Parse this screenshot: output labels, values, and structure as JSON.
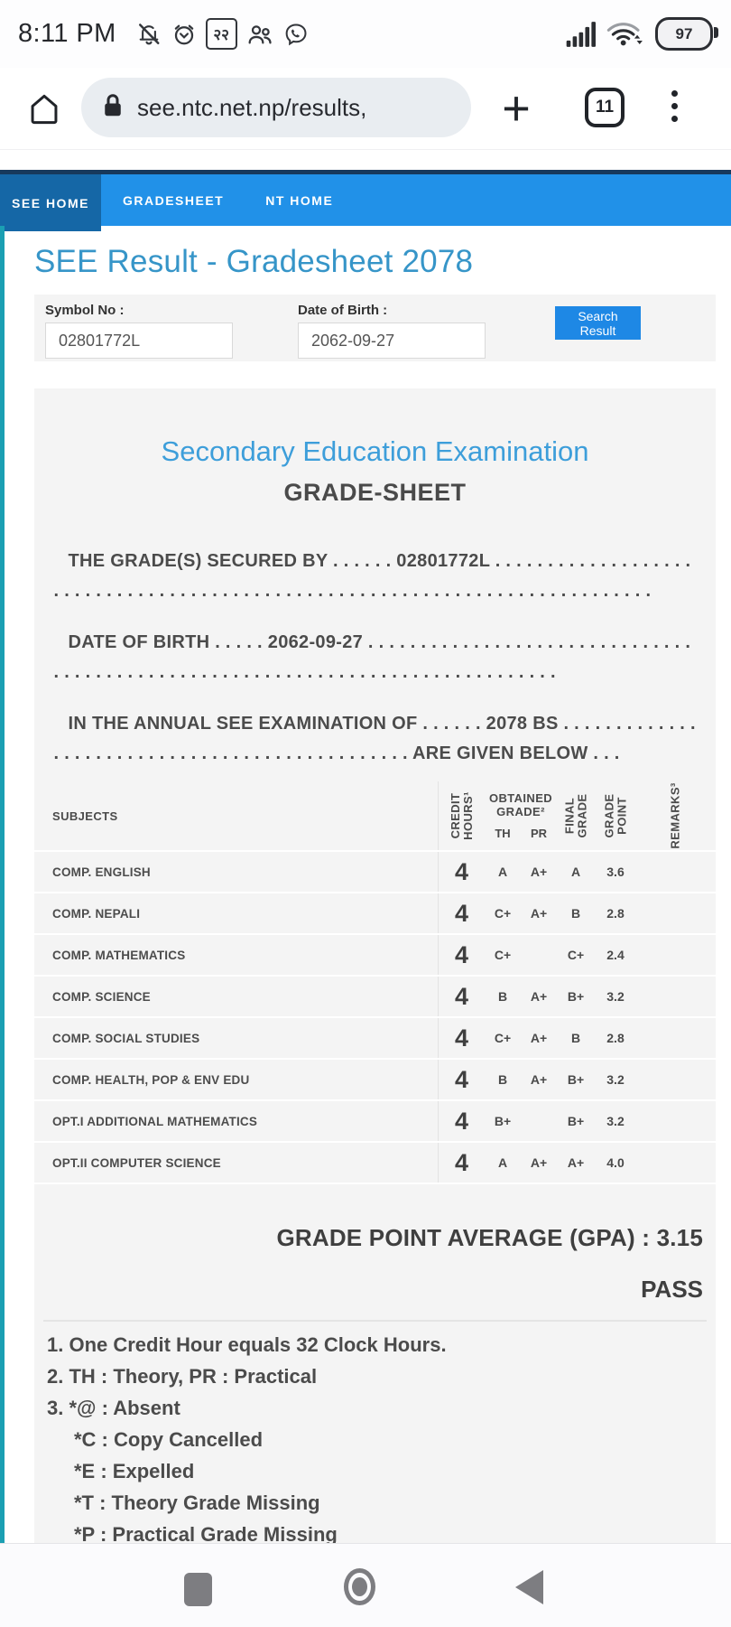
{
  "status_bar": {
    "time": "8:11 PM",
    "nepali_badge_text": "२२",
    "battery_percent": "97",
    "left_icons": [
      "muted-bell-icon",
      "alarm-clock-icon",
      "nepali-numeral-badge",
      "contacts-icon",
      "viber-icon"
    ],
    "right_icons": [
      "signal-icon",
      "wifi-icon",
      "battery-indicator"
    ]
  },
  "browser_toolbar": {
    "url": "see.ntc.net.np/results,",
    "tab_count": "11",
    "icons": [
      "home-icon",
      "lock-icon",
      "new-tab-plus-icon",
      "tab-counter",
      "menu-kebab-icon"
    ]
  },
  "site_nav": {
    "items": [
      {
        "label": "SEE HOME",
        "active": true
      },
      {
        "label": "GRADESHEET",
        "active": false
      },
      {
        "label": "NT HOME",
        "active": false
      }
    ]
  },
  "search_section": {
    "page_title": "SEE Result - Gradesheet 2078",
    "symbol_label": "Symbol No :",
    "symbol_value": "02801772L",
    "dob_label": "Date of Birth :",
    "dob_value": "2062-09-27",
    "search_button": "Search Result"
  },
  "gradesheet": {
    "exam_title": "Secondary Education Examination",
    "sheet_title": "GRADE-SHEET",
    "secured_line": "THE GRADE(S) SECURED BY . . . . . . 02801772L . . . . . . . . . . . . . . . . . . . . . . . . . . . . . . . . . . . . . . . . . . . . . . . . . . . . . . . . . . . . . . . . . . . . . . . . . . . .",
    "dob_line": "DATE OF BIRTH . . . . . 2062-09-27 . . . . . . . . . . . . . . . . . . . . . . . . . . . . . . . . . . . . . . . . . . . . . . . . . . . . . . . . . . . . . . . . . . . . . . . . . . . . . . .",
    "exam_line": "IN THE ANNUAL SEE EXAMINATION OF . . . . . . 2078 BS . . . . . . . . . . . . . . . . . . . . . . . . . . . . . . . . . . . . . . . . . . . . . . . ARE GIVEN BELOW . . .",
    "gpa_line": "GRADE POINT AVERAGE (GPA) : 3.15",
    "result": "PASS"
  },
  "table": {
    "headers": {
      "subjects": "SUBJECTS",
      "credit_hours": "CREDIT\nHOURS¹",
      "obtained_grade": "OBTAINED\nGRADE²",
      "th": "TH",
      "pr": "PR",
      "final_grade": "FINAL\nGRADE",
      "grade_point": "GRADE\nPOINT",
      "remarks": "REMARKS³"
    },
    "rows": [
      {
        "subject": "COMP. ENGLISH",
        "credit": "4",
        "th": "A",
        "pr": "A+",
        "final": "A",
        "gp": "3.6",
        "remarks": ""
      },
      {
        "subject": "COMP. NEPALI",
        "credit": "4",
        "th": "C+",
        "pr": "A+",
        "final": "B",
        "gp": "2.8",
        "remarks": ""
      },
      {
        "subject": "COMP. MATHEMATICS",
        "credit": "4",
        "th": "C+",
        "pr": "",
        "final": "C+",
        "gp": "2.4",
        "remarks": ""
      },
      {
        "subject": "COMP. SCIENCE",
        "credit": "4",
        "th": "B",
        "pr": "A+",
        "final": "B+",
        "gp": "3.2",
        "remarks": ""
      },
      {
        "subject": "COMP. SOCIAL STUDIES",
        "credit": "4",
        "th": "C+",
        "pr": "A+",
        "final": "B",
        "gp": "2.8",
        "remarks": ""
      },
      {
        "subject": "COMP. HEALTH, POP & ENV EDU",
        "credit": "4",
        "th": "B",
        "pr": "A+",
        "final": "B+",
        "gp": "3.2",
        "remarks": ""
      },
      {
        "subject": "OPT.I ADDITIONAL MATHEMATICS",
        "credit": "4",
        "th": "B+",
        "pr": "",
        "final": "B+",
        "gp": "3.2",
        "remarks": ""
      },
      {
        "subject": "OPT.II COMPUTER SCIENCE",
        "credit": "4",
        "th": "A",
        "pr": "A+",
        "final": "A+",
        "gp": "4.0",
        "remarks": ""
      }
    ]
  },
  "footnotes": [
    {
      "text": "1. One Credit Hour equals 32 Clock Hours.",
      "indent": 0
    },
    {
      "text": "2. TH : Theory, PR : Practical",
      "indent": 0
    },
    {
      "text": "3. *@ : Absent",
      "indent": 0
    },
    {
      "text": "*C : Copy Cancelled",
      "indent": 1
    },
    {
      "text": "*E : Expelled",
      "indent": 1
    },
    {
      "text": "*T : Theory Grade Missing",
      "indent": 1
    },
    {
      "text": "*P : Practical Grade Missing",
      "indent": 1
    }
  ],
  "android_nav": {
    "icons": [
      "recents-square-icon",
      "home-circle-icon",
      "back-triangle-icon"
    ]
  },
  "colors": {
    "nav_blue": "#2191e8",
    "nav_active_blue": "#1567a6",
    "nav_top_line": "#17395c",
    "accent_teal": "#1b9fb3",
    "title_blue": "#3695c8",
    "heading_blue": "#3d9eda",
    "button_blue": "#1e88e5",
    "card_gray": "#f4f4f4"
  }
}
